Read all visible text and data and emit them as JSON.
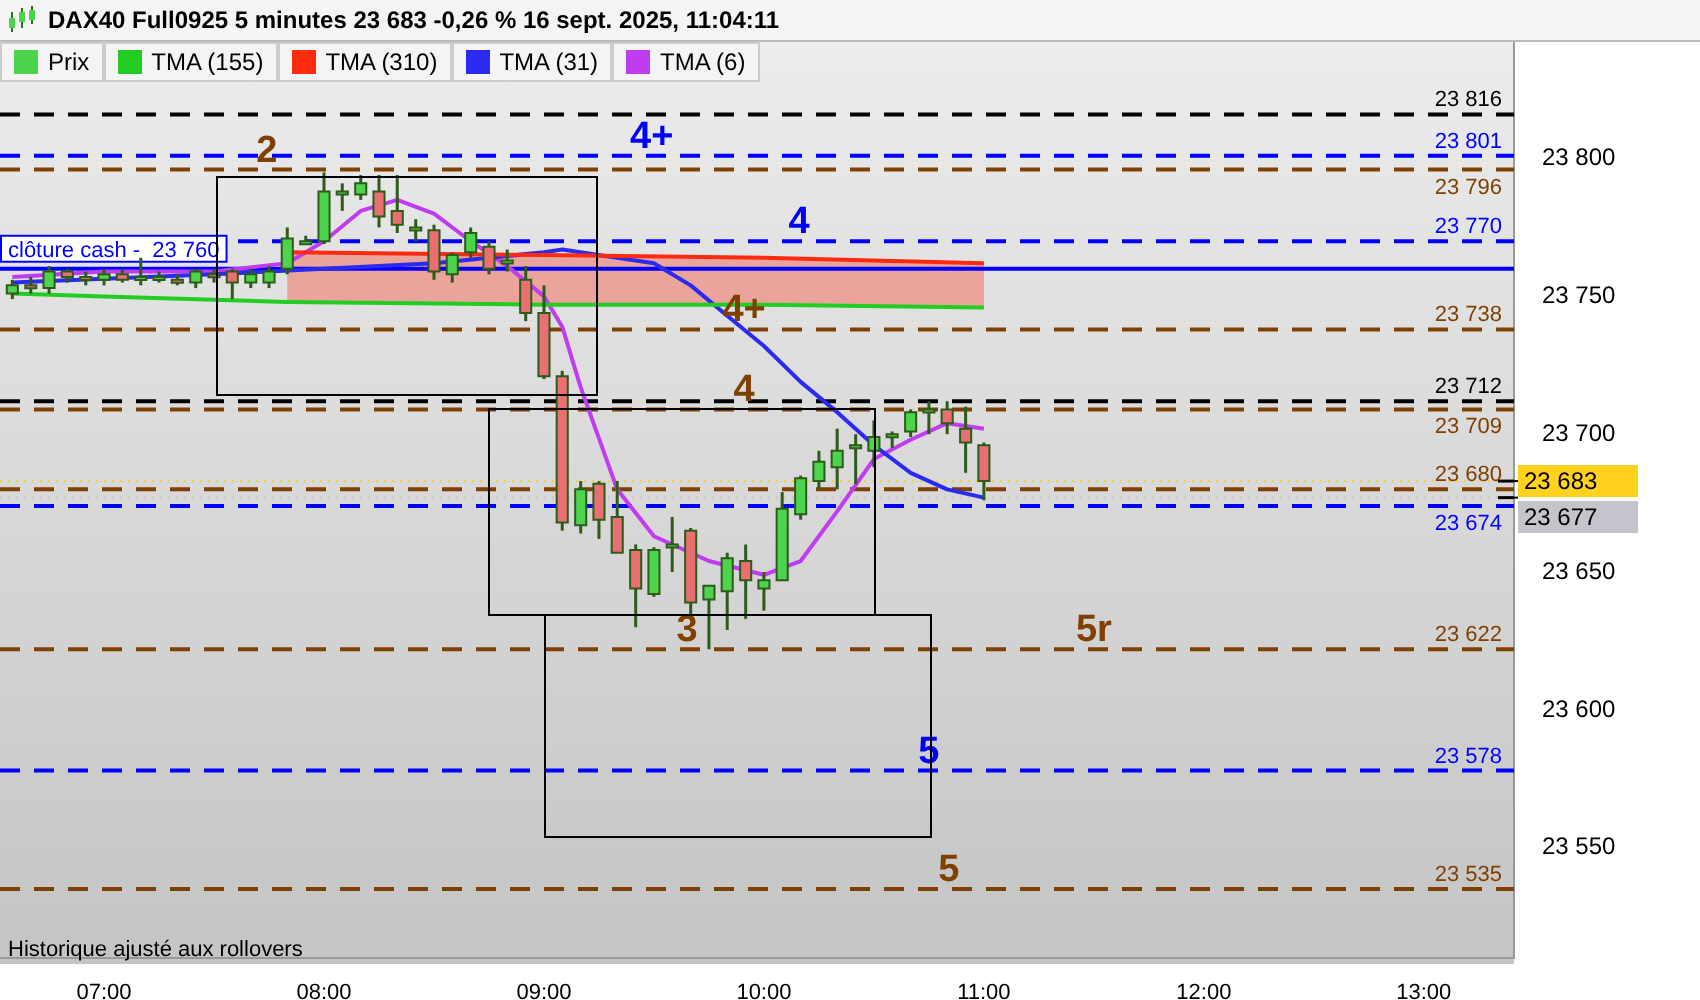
{
  "chart_data": {
    "type": "candlestick",
    "title": "DAX40 Full0925 5 minutes 23 683 -0,26 % 16 sept. 2025, 11:04:11",
    "xlim": [
      6.527,
      13.41
    ],
    "xticks": [
      {
        "value": 7,
        "label": "07:00"
      },
      {
        "value": 8,
        "label": "08:00"
      },
      {
        "value": 9,
        "label": "09:00"
      },
      {
        "value": 10,
        "label": "10:00"
      },
      {
        "value": 11,
        "label": "11:00"
      },
      {
        "value": 12,
        "label": "12:00"
      },
      {
        "value": 13,
        "label": "13:00"
      }
    ],
    "ylim": [
      23510,
      23843
    ],
    "yticks": [
      {
        "value": 23550,
        "label": "23 550"
      },
      {
        "value": 23600,
        "label": "23 600"
      },
      {
        "value": 23650,
        "label": "23 650"
      },
      {
        "value": 23700,
        "label": "23 700"
      },
      {
        "value": 23750,
        "label": "23 750"
      },
      {
        "value": 23800,
        "label": "23 800"
      }
    ],
    "grid": false,
    "legend": "top left",
    "marker": "none",
    "series": [
      {
        "name": "Prix",
        "type": "candlestick",
        "color": "#4cd44c",
        "x": [
          6.583,
          6.667,
          6.75,
          6.833,
          6.917,
          7,
          7.083,
          7.167,
          7.25,
          7.333,
          7.417,
          7.5,
          7.583,
          7.667,
          7.75,
          7.833,
          7.917,
          8,
          8.083,
          8.167,
          8.25,
          8.333,
          8.417,
          8.5,
          8.583,
          8.667,
          8.75,
          8.833,
          8.917,
          9,
          9.083,
          9.167,
          9.25,
          9.333,
          9.417,
          9.5,
          9.583,
          9.667,
          9.75,
          9.833,
          9.917,
          10,
          10.083,
          10.167,
          10.25,
          10.333,
          10.417,
          10.5,
          10.583,
          10.667,
          10.75,
          10.833,
          10.917,
          11
        ],
        "ohlc": [
          [
            23751,
            23756,
            23749,
            23754
          ],
          [
            23754,
            23757,
            23751,
            23753
          ],
          [
            23753,
            23761,
            23751,
            23759
          ],
          [
            23759,
            23760,
            23755,
            23757
          ],
          [
            23757,
            23759,
            23754,
            23756
          ],
          [
            23756,
            23760,
            23754,
            23758
          ],
          [
            23758,
            23760,
            23755,
            23756
          ],
          [
            23756,
            23764,
            23754,
            23757
          ],
          [
            23757,
            23759,
            23755,
            23757
          ],
          [
            23756,
            23758,
            23754,
            23755
          ],
          [
            23755,
            23760,
            23753,
            23759
          ],
          [
            23758,
            23760,
            23755,
            23757
          ],
          [
            23759,
            23760,
            23749,
            23755
          ],
          [
            23755,
            23760,
            23753,
            23758
          ],
          [
            23755,
            23761,
            23753,
            23759
          ],
          [
            23760,
            23775,
            23758,
            23771
          ],
          [
            23770,
            23772,
            23769,
            23770
          ],
          [
            23770,
            23795,
            23769,
            23788
          ],
          [
            23787,
            23791,
            23781,
            23788
          ],
          [
            23787,
            23794,
            23785,
            23791
          ],
          [
            23788,
            23794,
            23775,
            23779
          ],
          [
            23781,
            23794,
            23773,
            23776
          ],
          [
            23775,
            23778,
            23770,
            23775
          ],
          [
            23774,
            23776,
            23756,
            23759
          ],
          [
            23758,
            23766,
            23755,
            23765
          ],
          [
            23766,
            23775,
            23764,
            23773
          ],
          [
            23768,
            23770,
            23758,
            23760
          ],
          [
            23763,
            23767,
            23759,
            23763
          ],
          [
            23756,
            23761,
            23741,
            23744
          ],
          [
            23744,
            23754,
            23720,
            23721
          ],
          [
            23721,
            23723,
            23665,
            23668
          ],
          [
            23667,
            23683,
            23664,
            23680
          ],
          [
            23682,
            23683,
            23662,
            23669
          ],
          [
            23670,
            23683,
            23657,
            23657
          ],
          [
            23658,
            23660,
            23630,
            23644
          ],
          [
            23642,
            23659,
            23641,
            23658
          ],
          [
            23659,
            23670,
            23650,
            23660
          ],
          [
            23665,
            23666,
            23634,
            23639
          ],
          [
            23640,
            23645,
            23622,
            23645
          ],
          [
            23643,
            23657,
            23629,
            23655
          ],
          [
            23654,
            23660,
            23633,
            23647
          ],
          [
            23644,
            23650,
            23636,
            23647
          ],
          [
            23647,
            23679,
            23647,
            23673
          ],
          [
            23671,
            23685,
            23669,
            23684
          ],
          [
            23683,
            23694,
            23680,
            23690
          ],
          [
            23688,
            23702,
            23680,
            23694
          ],
          [
            23695,
            23700,
            23682,
            23696
          ],
          [
            23694,
            23705,
            23688,
            23699
          ],
          [
            23700,
            23701,
            23695,
            23700
          ],
          [
            23701,
            23709,
            23699,
            23708
          ],
          [
            23709,
            23712,
            23700,
            23709
          ],
          [
            23709,
            23712,
            23700,
            23704
          ],
          [
            23702,
            23710,
            23686,
            23697
          ],
          [
            23696,
            23697,
            23676,
            23683
          ]
        ],
        "colors": [
          "#4cd44c",
          "#e87070",
          "#4cd44c",
          "#e87070",
          "#e87070",
          "#4cd44c",
          "#e87070",
          "#4cd44c",
          "#4cd44c",
          "#e87070",
          "#4cd44c",
          "#e87070",
          "#e87070",
          "#4cd44c",
          "#4cd44c",
          "#4cd44c",
          "#4cd44c",
          "#4cd44c",
          "#4cd44c",
          "#4cd44c",
          "#e87070",
          "#e87070",
          "#4cd44c",
          "#e87070",
          "#4cd44c",
          "#4cd44c",
          "#e87070",
          "#4cd44c",
          "#e87070",
          "#e87070",
          "#e87070",
          "#4cd44c",
          "#e87070",
          "#e87070",
          "#e87070",
          "#4cd44c",
          "#4cd44c",
          "#e87070",
          "#4cd44c",
          "#4cd44c",
          "#e87070",
          "#4cd44c",
          "#4cd44c",
          "#4cd44c",
          "#4cd44c",
          "#4cd44c",
          "#4cd44c",
          "#4cd44c",
          "#4cd44c",
          "#4cd44c",
          "#4cd44c",
          "#e87070",
          "#e87070",
          "#e87070"
        ]
      },
      {
        "name": "TMA (155)",
        "type": "line",
        "color": "#22cc22",
        "x": [
          6.583,
          7,
          7.833,
          9,
          10,
          11
        ],
        "values": [
          23751,
          23750,
          23748,
          23747,
          23747,
          23746
        ]
      },
      {
        "name": "TMA (310)",
        "type": "line",
        "color": "#ff2a10",
        "x": [
          7.833,
          9,
          10,
          11
        ],
        "values": [
          23766,
          23765,
          23764,
          23762
        ],
        "lower": [
          23748,
          23747,
          23747,
          23746
        ],
        "upper": [
          23766,
          23765,
          23764,
          23762
        ]
      },
      {
        "name": "TMA (31)",
        "type": "line",
        "color": "#2a2af0",
        "x": [
          6.583,
          7.5,
          8.5,
          9,
          9.083,
          9.5,
          9.667,
          9.833,
          10,
          10.167,
          10.333,
          10.5,
          10.667,
          10.833,
          11
        ],
        "values": [
          23755,
          23758,
          23762,
          23766,
          23767,
          23762,
          23754,
          23743,
          23732,
          23719,
          23708,
          23696,
          23686,
          23680,
          23677
        ]
      },
      {
        "name": "TMA (6)",
        "type": "line",
        "color": "#c03cf0",
        "x": [
          6.583,
          7,
          7.5,
          7.833,
          8,
          8.167,
          8.333,
          8.5,
          8.667,
          8.833,
          9,
          9.083,
          9.167,
          9.333,
          9.5,
          9.75,
          10,
          10.167,
          10.333,
          10.5,
          10.667,
          10.833,
          11
        ],
        "values": [
          23757,
          23759,
          23759,
          23762,
          23770,
          23781,
          23785,
          23780,
          23770,
          23761,
          23750,
          23739,
          23717,
          23680,
          23663,
          23654,
          23649,
          23654,
          23672,
          23691,
          23698,
          23704,
          23702
        ]
      }
    ],
    "ref_lines": [
      {
        "axis": "y",
        "value": 23816,
        "label": "23 816",
        "color": "#000000",
        "line_style": "dashed"
      },
      {
        "axis": "y",
        "value": 23801,
        "label": "23 801",
        "color": "#0000ff",
        "line_style": "dashed"
      },
      {
        "axis": "y",
        "value": 23796,
        "label": "23 796",
        "color": "#804000",
        "line_style": "dashed"
      },
      {
        "axis": "y",
        "value": 23770,
        "label": "23 770",
        "color": "#0000ff",
        "line_style": "dashed"
      },
      {
        "axis": "y",
        "value": 23760,
        "label": "clôture cash -  23 760",
        "color": "#0000ff",
        "line_style": "solid"
      },
      {
        "axis": "y",
        "value": 23738,
        "label": "23 738",
        "color": "#804000",
        "line_style": "dashed"
      },
      {
        "axis": "y",
        "value": 23712,
        "label": "23 712",
        "color": "#000000",
        "line_style": "dashed"
      },
      {
        "axis": "y",
        "value": 23709,
        "label": "23 709",
        "color": "#804000",
        "line_style": "dashed"
      },
      {
        "axis": "y",
        "value": 23680,
        "label": "23 680",
        "color": "#804000",
        "line_style": "dashed"
      },
      {
        "axis": "y",
        "value": 23674,
        "label": "23 674",
        "color": "#0000ff",
        "line_style": "dashed"
      },
      {
        "axis": "y",
        "value": 23622,
        "label": "23 622",
        "color": "#804000",
        "line_style": "dashed"
      },
      {
        "axis": "y",
        "value": 23578,
        "label": "23 578",
        "color": "#0000ff",
        "line_style": "dashed"
      },
      {
        "axis": "y",
        "value": 23535,
        "label": "23 535",
        "color": "#804000",
        "line_style": "dashed"
      },
      {
        "axis": "y",
        "value": 23683,
        "label": "23 683",
        "color": "#ffd21e",
        "line_style": "none"
      },
      {
        "axis": "y",
        "value": 23677,
        "label": "23 677",
        "color": "#c4c4cc",
        "line_style": "none"
      }
    ],
    "annotations": [
      {
        "text": "2",
        "x": 7.74,
        "y": 23796
      },
      {
        "text": "4+",
        "x": 9.49,
        "y": 23801
      },
      {
        "text": "4",
        "x": 10.16,
        "y": 23770
      },
      {
        "text": "4+",
        "x": 9.91,
        "y": 23738
      },
      {
        "text": "4",
        "x": 9.91,
        "y": 23709
      },
      {
        "text": "3",
        "x": 9.65,
        "y": 23622
      },
      {
        "text": "5r",
        "x": 11.5,
        "y": 23622
      },
      {
        "text": "5",
        "x": 10.75,
        "y": 23578
      },
      {
        "text": "5",
        "x": 10.84,
        "y": 23535
      },
      "Historique ajusté aux rollovers"
    ]
  }
}
